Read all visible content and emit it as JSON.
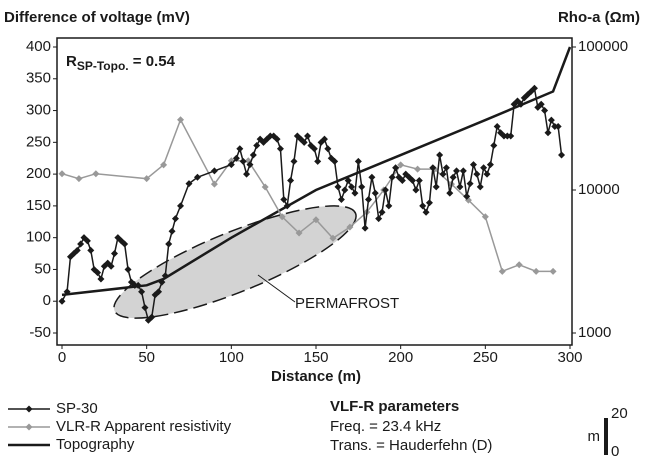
{
  "chart_data": {
    "type": "line",
    "ylabel": "Difference of voltage (mV)",
    "y2label": "Rho-a (Ωm)",
    "xlabel": "Distance (m)",
    "annotation": {
      "main": "R",
      "sub": "SP-Topo.",
      "rest": " = 0.54"
    },
    "region_label": "PERMAFROST",
    "parameters": {
      "title": "VLF-R parameters",
      "lines": [
        "Freq. = 23.4 kHz",
        "Trans. = Hauderfehn (D)"
      ]
    },
    "scale_bar": {
      "unit": "m",
      "top": 20,
      "bottom": 0
    },
    "xlim": [
      0,
      300
    ],
    "xticks": [
      0,
      50,
      100,
      150,
      200,
      250,
      300
    ],
    "ylim": [
      -50,
      400
    ],
    "yticks": [
      -50,
      0,
      50,
      100,
      150,
      200,
      250,
      300,
      350,
      400
    ],
    "y2lim": [
      1000,
      100000
    ],
    "y2ticks": [
      1000,
      10000,
      100000
    ],
    "y2log": true,
    "series": [
      {
        "name": "SP-30",
        "color": "#1a1a1a",
        "marker": "diamond",
        "line_width": 1.5,
        "x": [
          0,
          3,
          5,
          7,
          9,
          11,
          13,
          15,
          17,
          19,
          21,
          23,
          25,
          27,
          29,
          31,
          33,
          35,
          37,
          39,
          41,
          43,
          45,
          47,
          49,
          51,
          53,
          55,
          57,
          59,
          61,
          63,
          65,
          67,
          70,
          75,
          80,
          90,
          100,
          103,
          105,
          107,
          109,
          111,
          113,
          115,
          117,
          119,
          121,
          123,
          125,
          127,
          129,
          131,
          133,
          135,
          137,
          139,
          141,
          143,
          145,
          147,
          149,
          151,
          153,
          155,
          157,
          159,
          161,
          163,
          165,
          167,
          169,
          171,
          173,
          175,
          177,
          179,
          181,
          183,
          185,
          187,
          189,
          191,
          193,
          195,
          197,
          199,
          201,
          203,
          205,
          207,
          209,
          211,
          213,
          215,
          217,
          219,
          221,
          223,
          225,
          227,
          229,
          231,
          233,
          235,
          237,
          239,
          241,
          243,
          245,
          247,
          249,
          251,
          253,
          255,
          257,
          259,
          261,
          263,
          265,
          267,
          269,
          271,
          273,
          275,
          277,
          279,
          281,
          283,
          285,
          287,
          289,
          291,
          293,
          295
        ],
        "values": [
          0,
          15,
          70,
          75,
          80,
          90,
          100,
          95,
          80,
          50,
          45,
          35,
          55,
          60,
          55,
          75,
          100,
          95,
          90,
          50,
          30,
          25,
          25,
          15,
          -10,
          -30,
          -25,
          10,
          15,
          30,
          40,
          90,
          110,
          130,
          150,
          185,
          195,
          205,
          215,
          225,
          240,
          220,
          200,
          215,
          230,
          245,
          255,
          250,
          255,
          260,
          260,
          255,
          240,
          160,
          150,
          190,
          220,
          260,
          255,
          250,
          260,
          245,
          240,
          220,
          250,
          255,
          240,
          225,
          220,
          180,
          160,
          175,
          190,
          180,
          170,
          220,
          180,
          115,
          160,
          195,
          170,
          130,
          140,
          175,
          150,
          195,
          210,
          195,
          190,
          200,
          195,
          190,
          175,
          190,
          150,
          140,
          155,
          210,
          180,
          230,
          200,
          210,
          170,
          195,
          205,
          180,
          205,
          165,
          185,
          215,
          200,
          180,
          210,
          200,
          215,
          245,
          275,
          265,
          260,
          260,
          260,
          310,
          315,
          310,
          320,
          325,
          330,
          335,
          305,
          310,
          300,
          265,
          285,
          275,
          275,
          230
        ]
      },
      {
        "name": "VLR-R Apparent resistivity",
        "color": "#999999",
        "marker": "diamond",
        "line_width": 1.5,
        "axis": "y2",
        "x": [
          0,
          10,
          20,
          50,
          60,
          70,
          90,
          100,
          110,
          120,
          130,
          140,
          150,
          160,
          170,
          180,
          190,
          200,
          210,
          220,
          230,
          240,
          250,
          260,
          270,
          280,
          290
        ],
        "values": [
          13000,
          12000,
          13000,
          12000,
          15000,
          31000,
          11000,
          16000,
          16000,
          10500,
          6500,
          5000,
          6200,
          4600,
          5500,
          7000,
          10000,
          15000,
          14000,
          14000,
          11000,
          8500,
          6500,
          2700,
          3000,
          2700,
          2700
        ]
      },
      {
        "name": "Topography",
        "color": "#1a1a1a",
        "line_width": 2.5,
        "x": [
          0,
          50,
          60,
          100,
          150,
          200,
          250,
          290,
          300
        ],
        "values": [
          10,
          25,
          35,
          100,
          175,
          230,
          285,
          330,
          400
        ]
      }
    ]
  }
}
